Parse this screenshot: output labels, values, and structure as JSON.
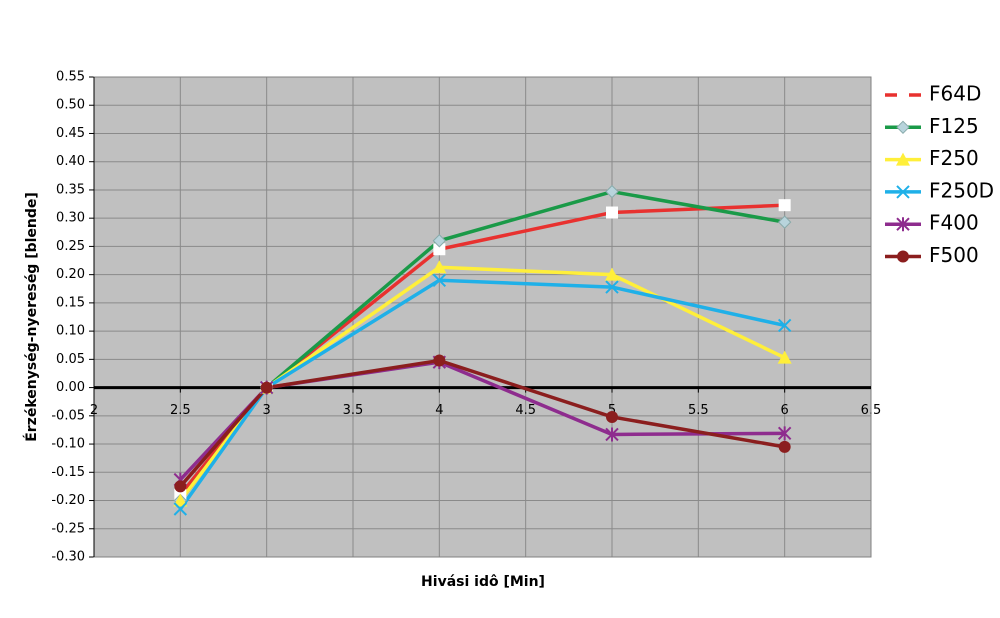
{
  "chart_data": {
    "type": "line",
    "xlabel": "Hivási idô [Min]",
    "ylabel": "Érzékenység-nyereség [blende]",
    "x": [
      2.5,
      3,
      4,
      5,
      6
    ],
    "xlim": [
      2,
      6.5
    ],
    "xticks": [
      2,
      2.5,
      3,
      3.5,
      4,
      4.5,
      5,
      5.5,
      6,
      6.5
    ],
    "ylim": [
      -0.3,
      0.55
    ],
    "yticks": [
      {
        "value": 0.55,
        "label": "0.55"
      },
      {
        "value": 0.5,
        "label": "0.50"
      },
      {
        "value": 0.45,
        "label": "0.45"
      },
      {
        "value": 0.4,
        "label": "0.40"
      },
      {
        "value": 0.35,
        "label": "0.35"
      },
      {
        "value": 0.3,
        "label": "0.30"
      },
      {
        "value": 0.25,
        "label": "0.25"
      },
      {
        "value": 0.2,
        "label": "0.20"
      },
      {
        "value": 0.15,
        "label": "0.15"
      },
      {
        "value": 0.1,
        "label": "0.10"
      },
      {
        "value": 0.05,
        "label": "0.05"
      },
      {
        "value": 0,
        "label": "0.00"
      },
      {
        "value": -0.05,
        "label": "-0.05"
      },
      {
        "value": -0.1,
        "label": "-0.10"
      },
      {
        "value": -0.15,
        "label": "-0.15"
      },
      {
        "value": -0.2,
        "label": "-0.20"
      },
      {
        "value": -0.25,
        "label": "-0.25"
      },
      {
        "value": -0.3,
        "label": "-0.30"
      }
    ],
    "grid": true,
    "legend": "right",
    "series": [
      {
        "name": "F64D",
        "color": "#e8312f",
        "marker": "square",
        "values": [
          -0.19,
          0,
          0.245,
          0.31,
          0.323
        ]
      },
      {
        "name": "F125",
        "color": "#1a9a48",
        "marker": "diamond",
        "values": [
          -0.2,
          0,
          0.26,
          0.347,
          0.293
        ]
      },
      {
        "name": "F250",
        "color": "#ffef3a",
        "marker": "triangle",
        "values": [
          -0.2,
          0,
          0.213,
          0.2,
          0.053
        ]
      },
      {
        "name": "F250D",
        "color": "#1fb0e8",
        "marker": "x",
        "values": [
          -0.215,
          0,
          0.19,
          0.178,
          0.11
        ]
      },
      {
        "name": "F400",
        "color": "#8e2c8e",
        "marker": "star",
        "values": [
          -0.163,
          0,
          0.045,
          -0.083,
          -0.081
        ]
      },
      {
        "name": "F500",
        "color": "#8b1e1e",
        "marker": "circle",
        "values": [
          -0.175,
          0,
          0.048,
          -0.052,
          -0.105
        ]
      }
    ]
  }
}
